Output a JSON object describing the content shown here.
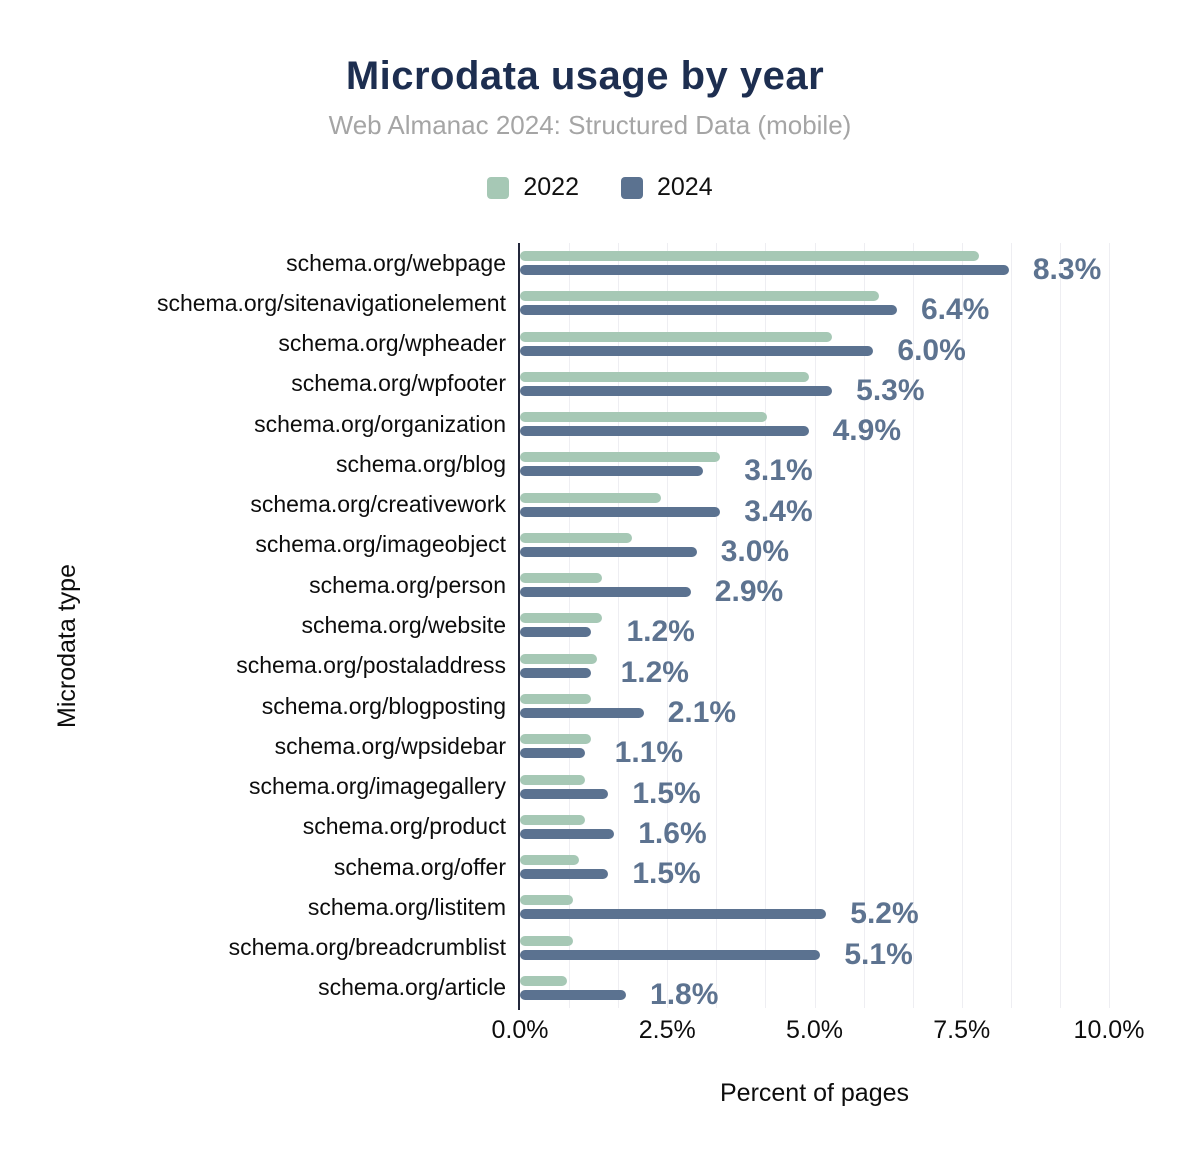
{
  "title": "Microdata usage by year",
  "subtitle": "Web Almanac 2024: Structured Data (mobile)",
  "legend": [
    {
      "label": "2022",
      "color": "#a6c8b5"
    },
    {
      "label": "2024",
      "color": "#5b7290"
    }
  ],
  "x_axis": {
    "title": "Percent of pages",
    "ticks": [
      "0.0%",
      "2.5%",
      "5.0%",
      "7.5%",
      "10.0%"
    ],
    "tick_values": [
      0,
      2.5,
      5,
      7.5,
      10
    ]
  },
  "y_axis": {
    "title": "Microdata type"
  },
  "colors": {
    "series_2022": "#a6c8b5",
    "series_2024": "#5b7290",
    "value_label": "#5d7390",
    "title": "#1d2e50",
    "subtitle": "#a5a5a5",
    "axis_line": "#23273b",
    "gridline": "#eeeef2"
  },
  "chart_data": {
    "type": "bar",
    "orientation": "horizontal",
    "title": "Microdata usage by year",
    "subtitle": "Web Almanac 2024: Structured Data (mobile)",
    "xlabel": "Percent of pages",
    "ylabel": "Microdata type",
    "xlim": [
      0,
      10
    ],
    "grid": "faint vertical minor gridlines every 0.8333% (12 intervals across 0-10%)",
    "legend_position": "top-center",
    "categories": [
      "schema.org/webpage",
      "schema.org/sitenavigationelement",
      "schema.org/wpheader",
      "schema.org/wpfooter",
      "schema.org/organization",
      "schema.org/blog",
      "schema.org/creativework",
      "schema.org/imageobject",
      "schema.org/person",
      "schema.org/website",
      "schema.org/postaladdress",
      "schema.org/blogposting",
      "schema.org/wpsidebar",
      "schema.org/imagegallery",
      "schema.org/product",
      "schema.org/offer",
      "schema.org/listitem",
      "schema.org/breadcrumblist",
      "schema.org/article"
    ],
    "series": [
      {
        "name": "2022",
        "color": "#a6c8b5",
        "values": [
          7.8,
          6.1,
          5.3,
          4.9,
          4.2,
          3.4,
          2.4,
          1.9,
          1.4,
          1.4,
          1.3,
          1.2,
          1.2,
          1.1,
          1.1,
          1.0,
          0.9,
          0.9,
          0.8
        ]
      },
      {
        "name": "2024",
        "color": "#5b7290",
        "values": [
          8.3,
          6.4,
          6.0,
          5.3,
          4.9,
          3.1,
          3.4,
          3.0,
          2.9,
          1.2,
          1.2,
          2.1,
          1.1,
          1.5,
          1.6,
          1.5,
          5.2,
          5.1,
          1.8
        ]
      }
    ],
    "data_labels": {
      "series": "2024",
      "values": [
        "8.3%",
        "6.4%",
        "6.0%",
        "5.3%",
        "4.9%",
        "3.1%",
        "3.4%",
        "3.0%",
        "2.9%",
        "1.2%",
        "1.2%",
        "2.1%",
        "1.1%",
        "1.5%",
        "1.6%",
        "1.5%",
        "5.2%",
        "5.1%",
        "1.8%"
      ]
    }
  }
}
